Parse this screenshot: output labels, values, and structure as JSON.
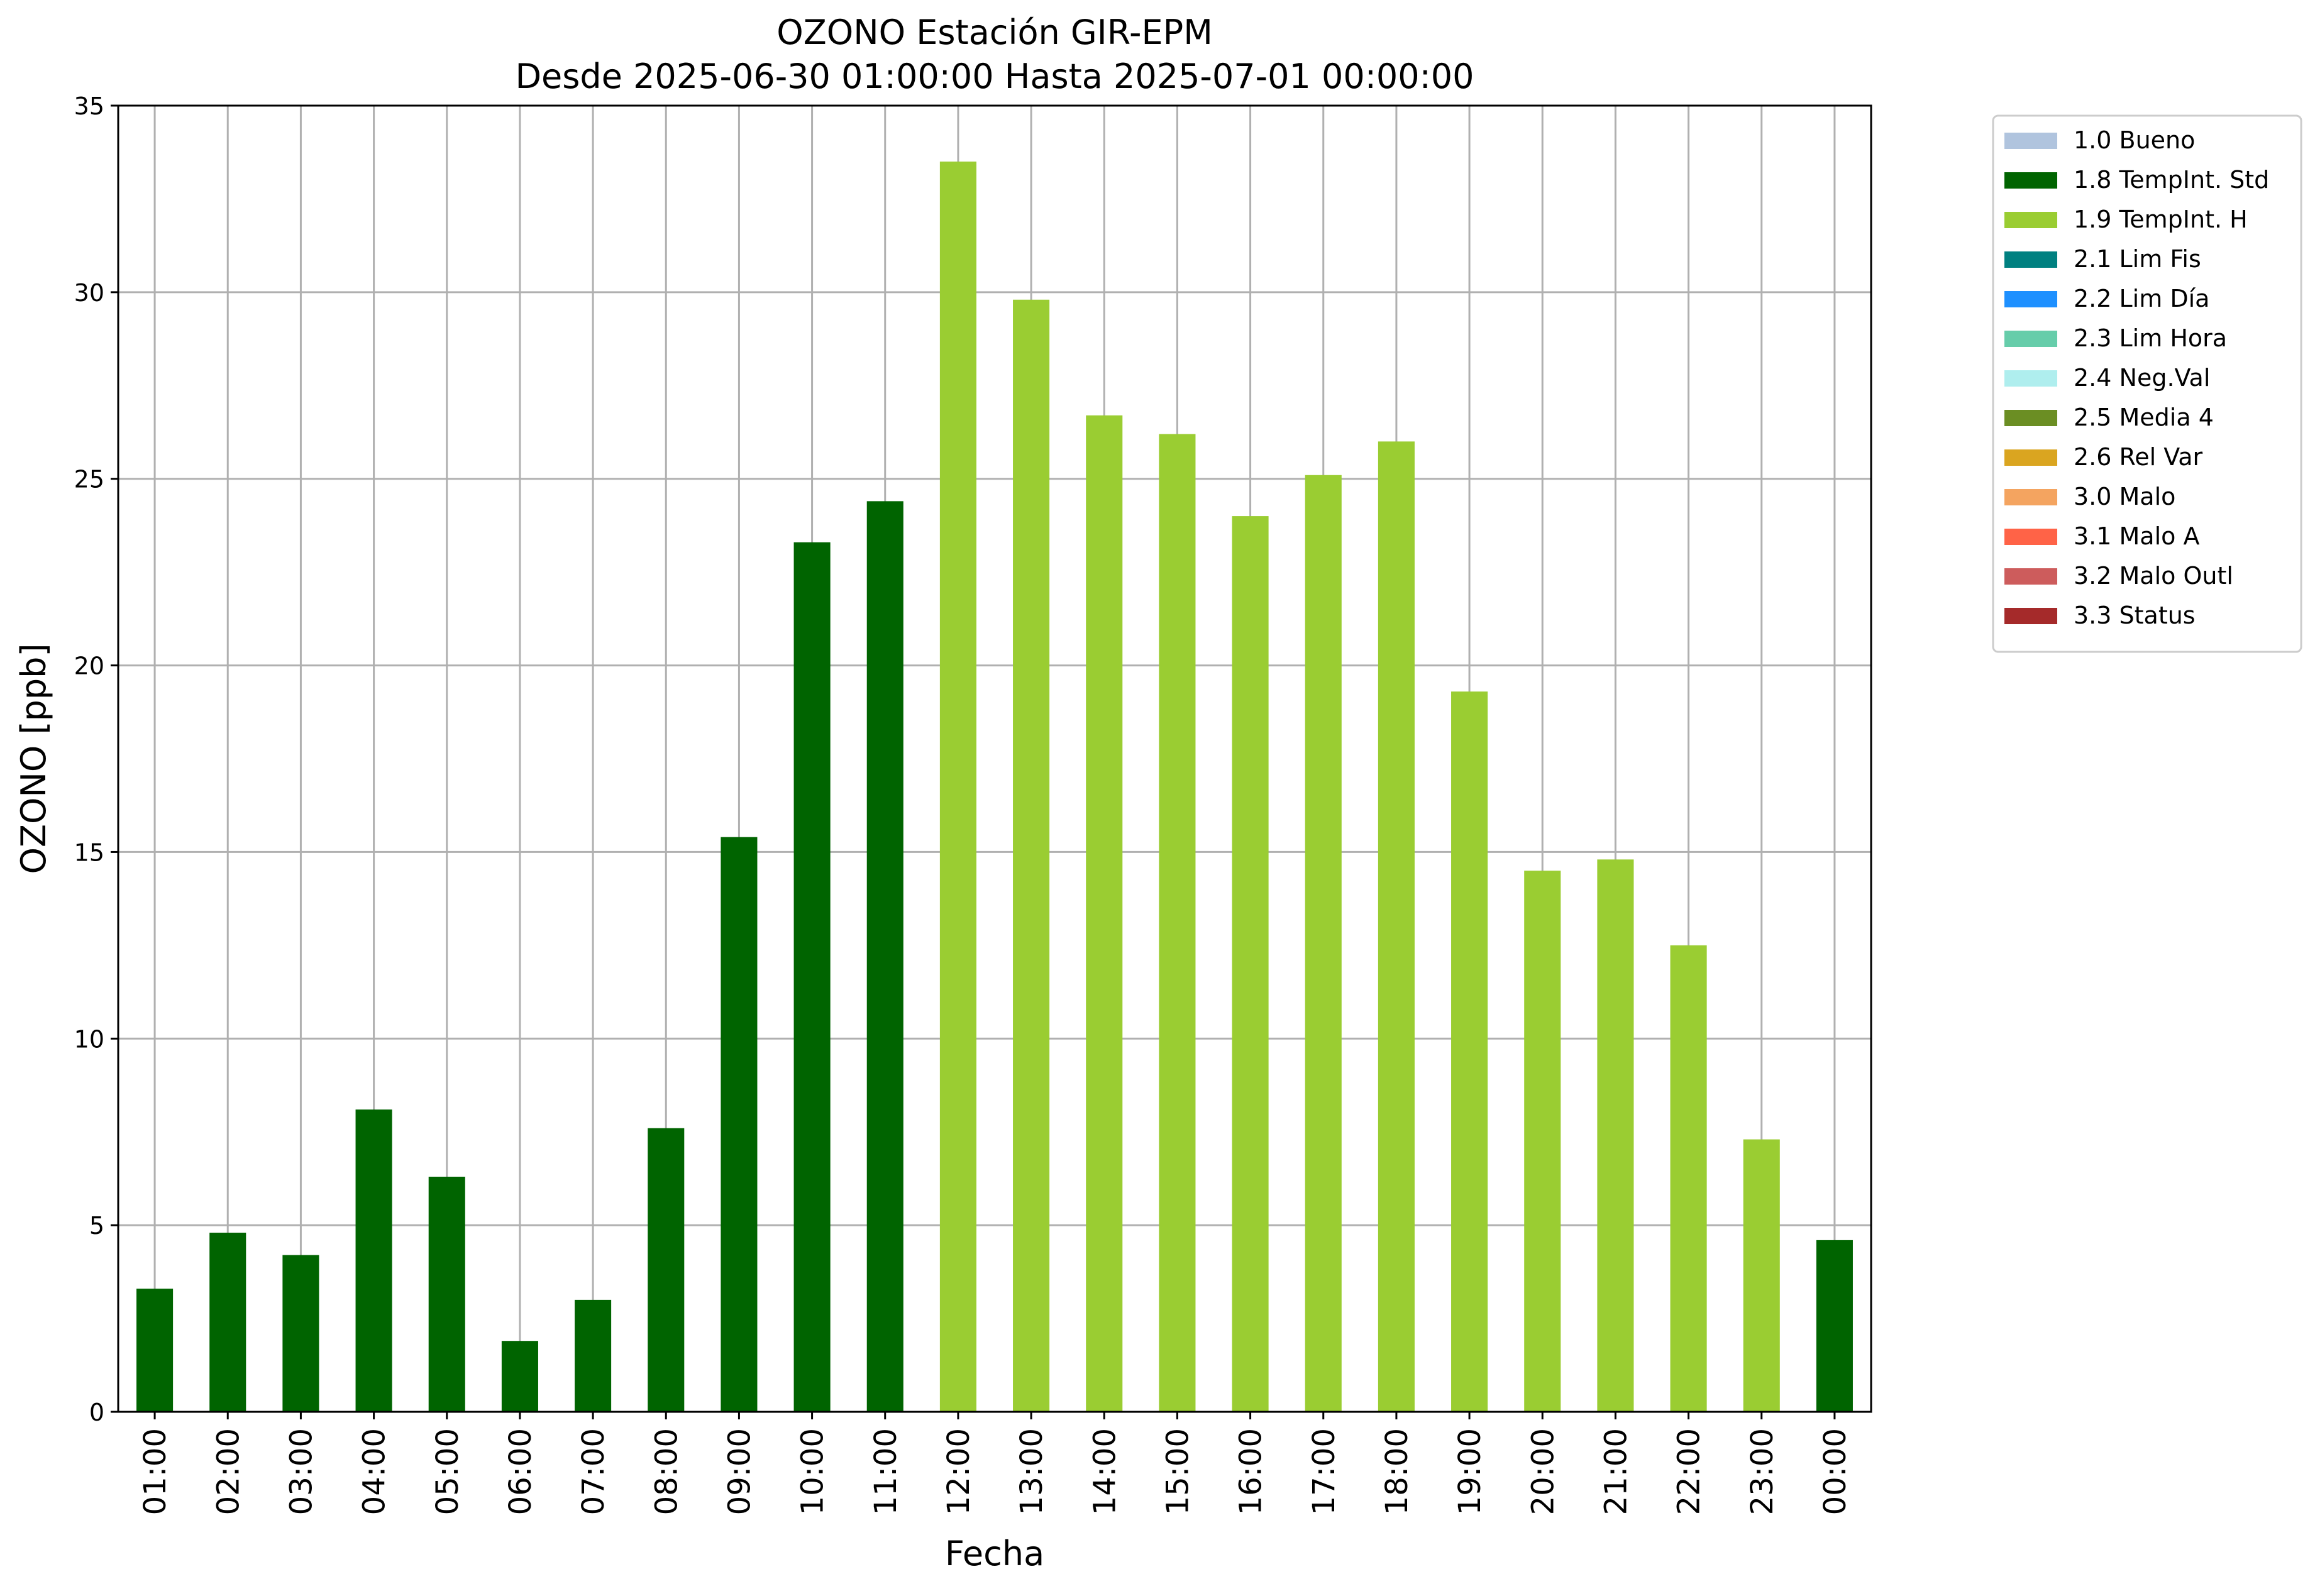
{
  "chart_data": {
    "type": "bar",
    "title": "OZONO Estación GIR-EPM",
    "subtitle": "Desde 2025-06-30 01:00:00 Hasta 2025-07-01 00:00:00",
    "xlabel": "Fecha",
    "ylabel": "OZONO [ppb]",
    "ylim": [
      0,
      35
    ],
    "yticks": [
      "0",
      "5",
      "10",
      "15",
      "20",
      "25",
      "30",
      "35"
    ],
    "grid": true,
    "legend_position": "outside-right-top",
    "categories": [
      "01:00",
      "02:00",
      "03:00",
      "04:00",
      "05:00",
      "06:00",
      "07:00",
      "08:00",
      "09:00",
      "10:00",
      "11:00",
      "12:00",
      "13:00",
      "14:00",
      "15:00",
      "16:00",
      "17:00",
      "18:00",
      "19:00",
      "20:00",
      "21:00",
      "22:00",
      "23:00",
      "00:00"
    ],
    "values": [
      3.3,
      4.8,
      4.2,
      8.1,
      6.3,
      1.9,
      3.0,
      7.6,
      15.4,
      23.3,
      24.4,
      33.5,
      29.8,
      26.7,
      26.2,
      24.0,
      25.1,
      26.0,
      19.3,
      14.5,
      14.8,
      12.5,
      7.3,
      4.6
    ],
    "value_flags": [
      "1.8",
      "1.8",
      "1.8",
      "1.8",
      "1.8",
      "1.8",
      "1.8",
      "1.8",
      "1.8",
      "1.8",
      "1.8",
      "1.9",
      "1.9",
      "1.9",
      "1.9",
      "1.9",
      "1.9",
      "1.9",
      "1.9",
      "1.9",
      "1.9",
      "1.9",
      "1.9",
      "1.8"
    ],
    "legend": [
      {
        "code": "1.0",
        "label": "1.0 Bueno",
        "color": "#b0c4de"
      },
      {
        "code": "1.8",
        "label": "1.8 TempInt. Std",
        "color": "#006400"
      },
      {
        "code": "1.9",
        "label": "1.9 TempInt. H",
        "color": "#9acd32"
      },
      {
        "code": "2.1",
        "label": "2.1 Lim Fis",
        "color": "#008080"
      },
      {
        "code": "2.2",
        "label": "2.2 Lim Día",
        "color": "#1e90ff"
      },
      {
        "code": "2.3",
        "label": "2.3 Lim Hora",
        "color": "#66cdaa"
      },
      {
        "code": "2.4",
        "label": "2.4 Neg.Val",
        "color": "#afeeee"
      },
      {
        "code": "2.5",
        "label": "2.5 Media 4",
        "color": "#6b8e23"
      },
      {
        "code": "2.6",
        "label": "2.6 Rel Var",
        "color": "#daa520"
      },
      {
        "code": "3.0",
        "label": "3.0 Malo",
        "color": "#f4a460"
      },
      {
        "code": "3.1",
        "label": "3.1 Malo A",
        "color": "#ff6347"
      },
      {
        "code": "3.2",
        "label": "3.2 Malo Outl",
        "color": "#cd5c5c"
      },
      {
        "code": "3.3",
        "label": "3.3 Status",
        "color": "#a52a2a"
      }
    ]
  }
}
